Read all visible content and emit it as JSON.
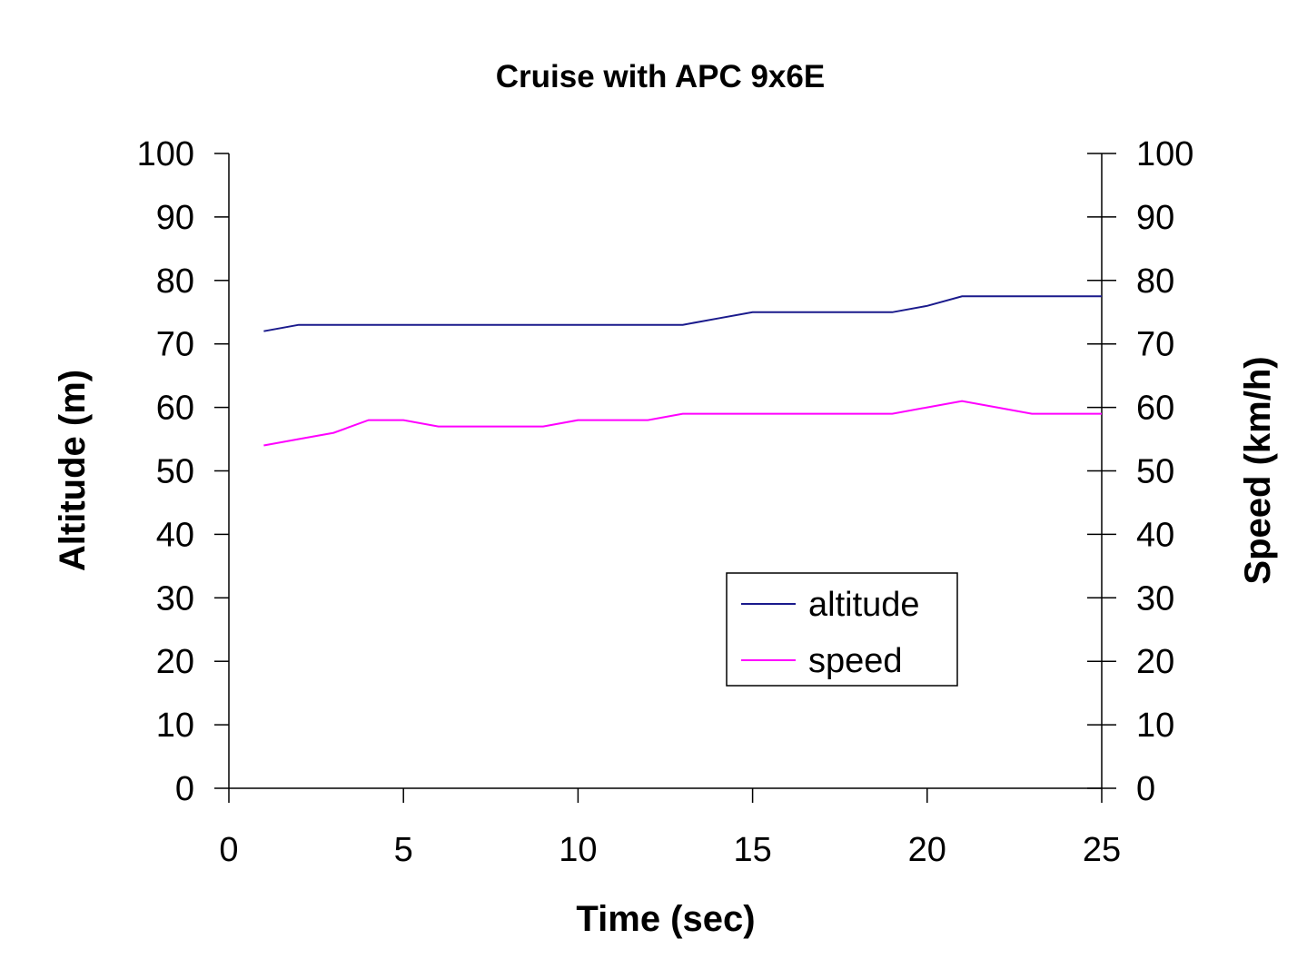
{
  "chart_data": {
    "type": "line",
    "title": "Cruise with APC 9x6E",
    "xlabel": "Time (sec)",
    "ylabel_left": "Altitude (m)",
    "ylabel_right": "Speed (km/h)",
    "xlim": [
      0,
      25
    ],
    "ylim": [
      0,
      100
    ],
    "x_ticks": [
      "0",
      "5",
      "10",
      "15",
      "20",
      "25"
    ],
    "y_ticks": [
      "0",
      "10",
      "20",
      "30",
      "40",
      "50",
      "60",
      "70",
      "80",
      "90",
      "100"
    ],
    "grid": false,
    "legend_position": "bottom-right",
    "series": [
      {
        "name": "altitude",
        "color": "#1a1a8c",
        "axis": "left",
        "x": [
          1,
          2,
          3,
          4,
          5,
          6,
          7,
          8,
          9,
          10,
          11,
          12,
          13,
          14,
          15,
          16,
          17,
          18,
          19,
          20,
          21,
          22,
          23,
          24,
          25
        ],
        "values": [
          72,
          73,
          73,
          73,
          73,
          73,
          73,
          73,
          73,
          73,
          73,
          73,
          73,
          74,
          75,
          75,
          75,
          75,
          75,
          76,
          77.5,
          77.5,
          77.5,
          77.5,
          77.5
        ]
      },
      {
        "name": "speed",
        "color": "#ff00ff",
        "axis": "right",
        "x": [
          1,
          2,
          3,
          4,
          5,
          6,
          7,
          8,
          9,
          10,
          11,
          12,
          13,
          14,
          15,
          16,
          17,
          18,
          19,
          20,
          21,
          22,
          23,
          24,
          25
        ],
        "values": [
          54,
          55,
          56,
          58,
          58,
          57,
          57,
          57,
          57,
          58,
          58,
          58,
          59,
          59,
          59,
          59,
          59,
          59,
          59,
          60,
          61,
          60,
          59,
          59,
          59
        ]
      }
    ]
  }
}
